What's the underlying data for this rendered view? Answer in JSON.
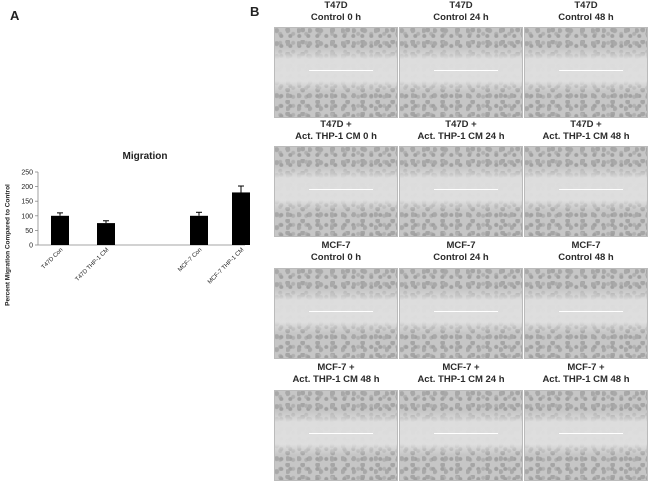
{
  "panel_a_letter": "A",
  "panel_b_letter": "B",
  "chart_data": {
    "type": "bar",
    "title": "Migration",
    "ylabel": "Percent Migration Compared to Control",
    "xlabel": "",
    "ylim": [
      0,
      250
    ],
    "yticks": [
      "0",
      "50",
      "100",
      "150",
      "200",
      "250"
    ],
    "categories": [
      "T47D Con",
      "T47D THP-1 CM",
      "MCF-7 Con",
      "MCF-7 THP-1 CM"
    ],
    "values": [
      100,
      75,
      100,
      180
    ],
    "errors": [
      10,
      8,
      12,
      22
    ],
    "bar_color": "#000000",
    "grid": false
  },
  "micrographs": [
    {
      "line1": "T47D",
      "line2": "Control 0 h"
    },
    {
      "line1": "T47D",
      "line2": "Control 24 h"
    },
    {
      "line1": "T47D",
      "line2": "Control 48 h"
    },
    {
      "line1": "T47D +",
      "line2": "Act. THP-1 CM 0 h"
    },
    {
      "line1": "T47D +",
      "line2": "Act. THP-1 CM 24 h"
    },
    {
      "line1": "T47D +",
      "line2": "Act. THP-1 CM 48 h"
    },
    {
      "line1": "MCF-7",
      "line2": "Control 0 h"
    },
    {
      "line1": "MCF-7",
      "line2": "Control 24 h"
    },
    {
      "line1": "MCF-7",
      "line2": "Control 48 h"
    },
    {
      "line1": "MCF-7 +",
      "line2": "Act. THP-1 CM 48 h"
    },
    {
      "line1": "MCF-7 +",
      "line2": "Act. THP-1 CM 24 h"
    },
    {
      "line1": "MCF-7 +",
      "line2": "Act. THP-1 CM 48 h"
    }
  ]
}
